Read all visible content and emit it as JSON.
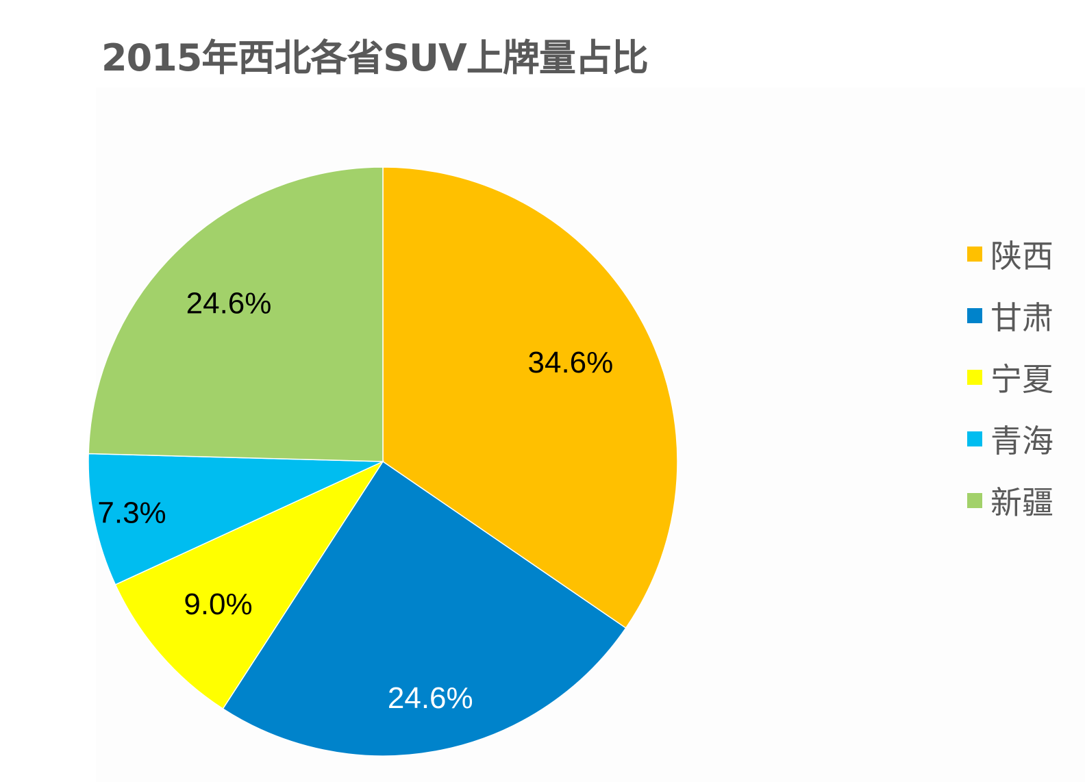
{
  "chart_data": {
    "type": "pie",
    "title": "2015年西北各省SUV上牌量占比",
    "slices": [
      {
        "name": "陕西",
        "value": 34.6,
        "label": "34.6%",
        "color": "#FFC000",
        "label_color": "#000000"
      },
      {
        "name": "甘肃",
        "value": 24.6,
        "label": "24.6%",
        "color": "#0083CB",
        "label_color": "#FFFFFF"
      },
      {
        "name": "宁夏",
        "value": 9.0,
        "label": "9.0%",
        "color": "#FFFF00",
        "label_color": "#000000"
      },
      {
        "name": "青海",
        "value": 7.3,
        "label": "7.3%",
        "color": "#00BDF0",
        "label_color": "#000000"
      },
      {
        "name": "新疆",
        "value": 24.6,
        "label": "24.6%",
        "color": "#A2D16A",
        "label_color": "#000000"
      }
    ],
    "legend_placement": "right"
  }
}
